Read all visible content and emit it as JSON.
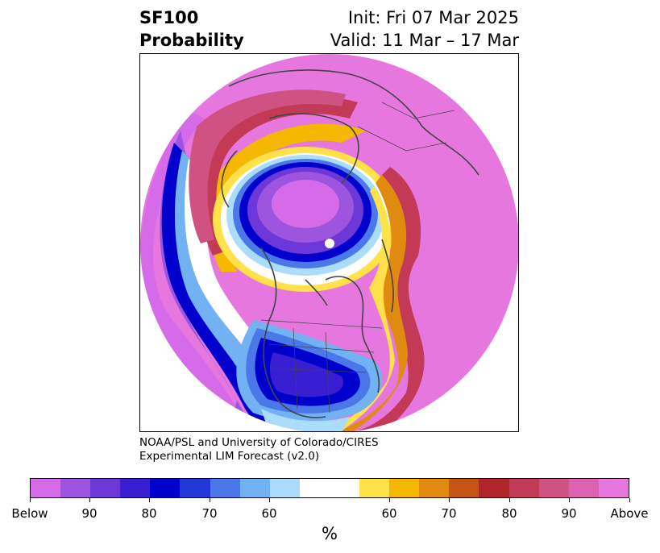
{
  "header": {
    "title_line1": "SF100",
    "title_line2": "Probability",
    "init_text": "Init: Fri 07 Mar 2025",
    "valid_text": "Valid: 11 Mar – 17 Mar"
  },
  "credit": {
    "line1": "NOAA/PSL and University of Colorado/CIRES",
    "line2": "Experimental LIM Forecast (v2.0)"
  },
  "colorbar": {
    "colors": [
      "#d56be8",
      "#9d55e0",
      "#6e38d8",
      "#3a1ed2",
      "#0000cc",
      "#2338d9",
      "#4a78e8",
      "#72b2f2",
      "#aadcfc",
      "#ffffff",
      "#ffffff",
      "#ffe14a",
      "#f5b800",
      "#e08a10",
      "#c55418",
      "#b0262a",
      "#c23a55",
      "#d05283",
      "#dc62b2",
      "#e677de"
    ],
    "ticks": [
      "Below",
      "90",
      "80",
      "70",
      "60",
      "60",
      "70",
      "80",
      "90",
      "Above"
    ],
    "unit": "%"
  },
  "map": {
    "land_colors": {
      "coast": "#444444"
    },
    "palette": {
      "above_extreme": "#e677de",
      "above_90": "#dc62b2",
      "above_85": "#d05283",
      "above_80": "#c23a55",
      "above_75": "#b0262a",
      "above_70": "#c55418",
      "above_65": "#e08a10",
      "above_60": "#f5b800",
      "above_55": "#ffe14a",
      "neutral": "#ffffff",
      "below_55": "#aadcfc",
      "below_60": "#72b2f2",
      "below_65": "#4a78e8",
      "below_70": "#2338d9",
      "below_75": "#0000cc",
      "below_80": "#3a1ed2",
      "below_85": "#6e38d8",
      "below_90": "#9d55e0",
      "below_extreme": "#d56be8"
    }
  }
}
